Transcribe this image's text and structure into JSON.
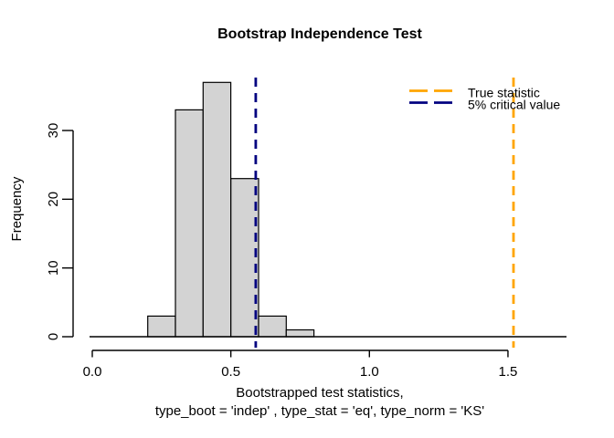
{
  "chart_data": {
    "type": "bar",
    "subtype": "histogram",
    "title": "Bootstrap Independence Test",
    "ylabel": "Frequency",
    "xlabel_line1": "Bootstrapped test statistics,",
    "xlabel_line2": "type_boot = 'indep' , type_stat = 'eq', type_norm = 'KS'",
    "breaks": [
      0.2,
      0.3,
      0.4,
      0.5,
      0.6,
      0.7,
      0.8
    ],
    "counts": [
      3,
      33,
      37,
      23,
      3,
      1
    ],
    "bar_fill": "#D3D3D3",
    "bar_stroke": "#000000",
    "xlim": [
      0.0,
      1.72
    ],
    "ylim": [
      0,
      38
    ],
    "grid": false,
    "x_ticks": [
      {
        "value": 0.0,
        "label": "0.0"
      },
      {
        "value": 0.5,
        "label": "0.5"
      },
      {
        "value": 1.0,
        "label": "1.0"
      },
      {
        "value": 1.5,
        "label": "1.5"
      }
    ],
    "y_ticks": [
      {
        "value": 0,
        "label": "0"
      },
      {
        "value": 10,
        "label": "10"
      },
      {
        "value": 20,
        "label": "20"
      },
      {
        "value": 30,
        "label": "30"
      }
    ],
    "vlines": [
      {
        "name": "true-statistic",
        "value": 1.52,
        "color": "#FFA500",
        "style": "dashed"
      },
      {
        "name": "critical-value-5pct",
        "value": 0.59,
        "color": "#000080",
        "style": "dashed"
      }
    ],
    "legend": {
      "position": "topright",
      "entries": [
        {
          "label": "True statistic",
          "color": "#FFA500",
          "line_style": "dashed"
        },
        {
          "label": "5% critical value",
          "color": "#000080",
          "line_style": "dashed"
        }
      ]
    }
  }
}
